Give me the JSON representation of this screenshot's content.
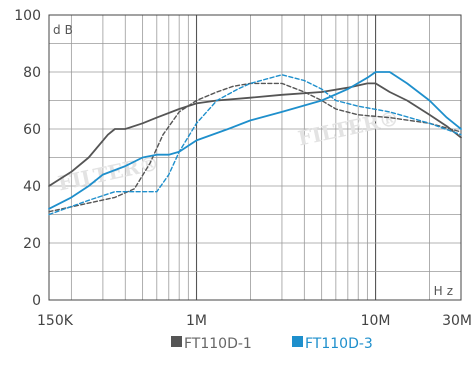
{
  "chart_data": {
    "type": "line",
    "title": "",
    "ylabel_unit": "dB",
    "xlabel_unit": "Hz",
    "xscale": "log",
    "xlim": [
      150000,
      30000000
    ],
    "ylim": [
      0,
      100
    ],
    "grid": true,
    "legend_position": "bottom-right",
    "yticks": [
      {
        "value": 0,
        "label": "0"
      },
      {
        "value": 20,
        "label": "20"
      },
      {
        "value": 40,
        "label": "40"
      },
      {
        "value": 60,
        "label": "60"
      },
      {
        "value": 80,
        "label": "80"
      },
      {
        "value": 100,
        "label": "100"
      }
    ],
    "xticks": [
      {
        "value": 150000,
        "label": "150K"
      },
      {
        "value": 1000000,
        "label": "1M"
      },
      {
        "value": 10000000,
        "label": "10M"
      },
      {
        "value": 30000000,
        "label": "30M"
      }
    ],
    "watermark_text": "FILTER®",
    "series": [
      {
        "name": "FT110D-1",
        "color": "#555555",
        "style": "solid",
        "points": [
          [
            150000,
            40
          ],
          [
            200000,
            45
          ],
          [
            250000,
            50
          ],
          [
            320000,
            58
          ],
          [
            350000,
            60
          ],
          [
            400000,
            60
          ],
          [
            500000,
            62
          ],
          [
            600000,
            64
          ],
          [
            800000,
            67
          ],
          [
            1000000,
            69
          ],
          [
            1300000,
            70
          ],
          [
            2000000,
            71
          ],
          [
            3000000,
            72
          ],
          [
            5000000,
            73
          ],
          [
            7000000,
            74.5
          ],
          [
            9000000,
            76
          ],
          [
            10000000,
            76
          ],
          [
            12000000,
            73
          ],
          [
            15000000,
            70
          ],
          [
            20000000,
            65
          ],
          [
            25000000,
            61
          ],
          [
            30000000,
            57
          ]
        ]
      },
      {
        "name": "FT110D-1",
        "color": "#555555",
        "style": "dashed",
        "points": [
          [
            150000,
            31
          ],
          [
            250000,
            34
          ],
          [
            350000,
            36
          ],
          [
            450000,
            39
          ],
          [
            550000,
            48
          ],
          [
            650000,
            58
          ],
          [
            800000,
            66
          ],
          [
            1000000,
            70
          ],
          [
            1300000,
            73
          ],
          [
            1600000,
            75
          ],
          [
            2000000,
            76
          ],
          [
            3000000,
            76
          ],
          [
            4000000,
            73
          ],
          [
            5000000,
            70
          ],
          [
            6000000,
            67
          ],
          [
            8000000,
            65
          ],
          [
            12000000,
            64
          ],
          [
            20000000,
            62
          ],
          [
            30000000,
            59
          ]
        ]
      },
      {
        "name": "FT110D-3",
        "color": "#1e8fcc",
        "style": "solid",
        "points": [
          [
            150000,
            32
          ],
          [
            200000,
            36
          ],
          [
            250000,
            40
          ],
          [
            300000,
            44
          ],
          [
            400000,
            47
          ],
          [
            500000,
            50
          ],
          [
            600000,
            51
          ],
          [
            700000,
            51
          ],
          [
            800000,
            52
          ],
          [
            1000000,
            56
          ],
          [
            1500000,
            60
          ],
          [
            2000000,
            63
          ],
          [
            3000000,
            66
          ],
          [
            5000000,
            70
          ],
          [
            7000000,
            74
          ],
          [
            9000000,
            78
          ],
          [
            10000000,
            80
          ],
          [
            12000000,
            80
          ],
          [
            15000000,
            76
          ],
          [
            20000000,
            70
          ],
          [
            25000000,
            64
          ],
          [
            30000000,
            60
          ]
        ]
      },
      {
        "name": "FT110D-3",
        "color": "#1e8fcc",
        "style": "dashed",
        "points": [
          [
            150000,
            30
          ],
          [
            250000,
            35
          ],
          [
            350000,
            38
          ],
          [
            500000,
            38
          ],
          [
            600000,
            38
          ],
          [
            700000,
            44
          ],
          [
            800000,
            52
          ],
          [
            1000000,
            62
          ],
          [
            1300000,
            70
          ],
          [
            1700000,
            74
          ],
          [
            2000000,
            76
          ],
          [
            3000000,
            79
          ],
          [
            4000000,
            77
          ],
          [
            5000000,
            74
          ],
          [
            6000000,
            70
          ],
          [
            8000000,
            68
          ],
          [
            12000000,
            66
          ],
          [
            20000000,
            62
          ],
          [
            30000000,
            58
          ]
        ]
      }
    ],
    "legend": [
      {
        "label": "FT110D-1",
        "color": "#555555"
      },
      {
        "label": "FT110D-3",
        "color": "#1e8fcc"
      }
    ]
  }
}
